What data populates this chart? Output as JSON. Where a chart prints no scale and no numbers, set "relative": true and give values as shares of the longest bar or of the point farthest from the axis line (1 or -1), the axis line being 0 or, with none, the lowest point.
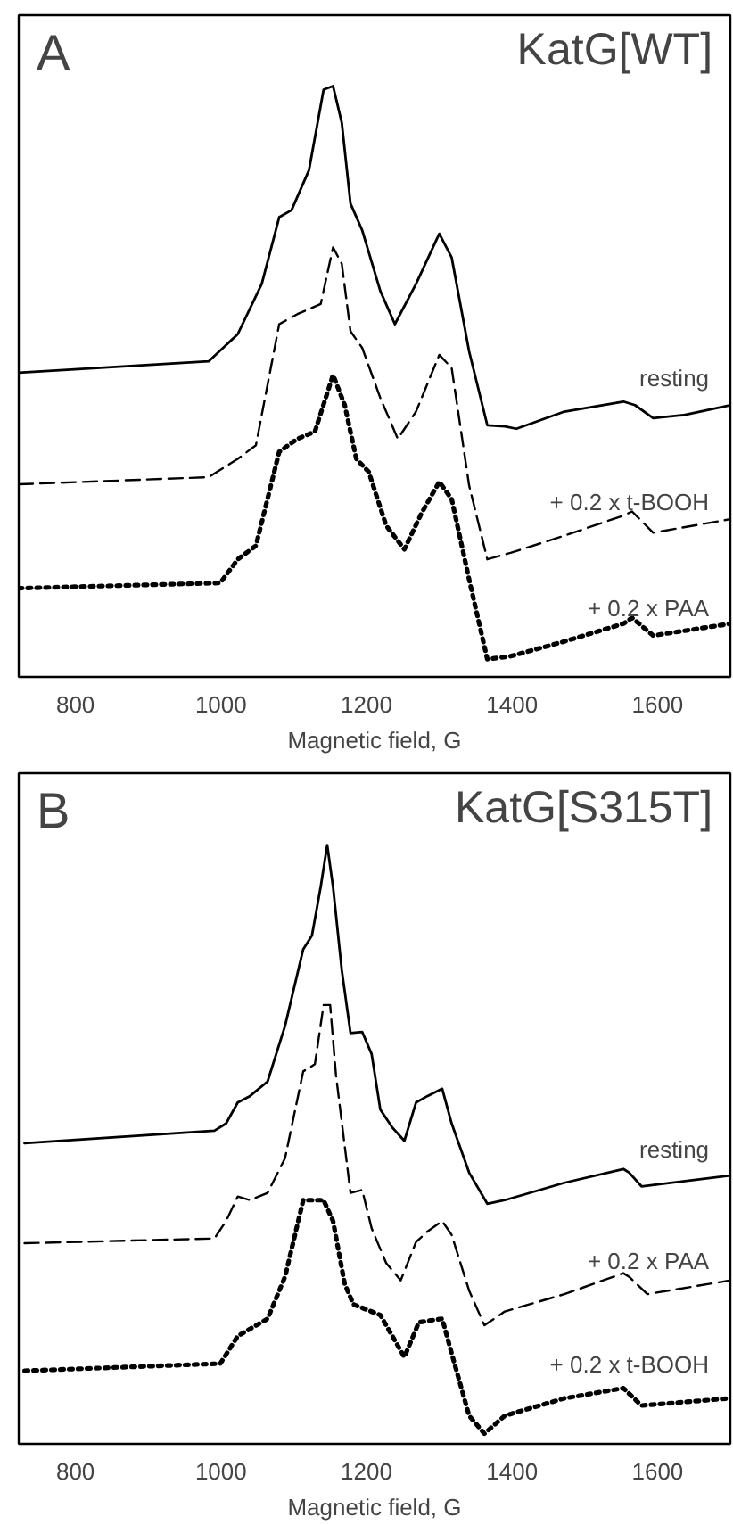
{
  "chart_data": [
    {
      "type": "line",
      "title": "KatG[WT]",
      "xlabel": "Magnetic field, G",
      "annotations": [
        "A"
      ],
      "relative": true,
      "xlim": [
        722,
        1700
      ],
      "xticks": [
        800,
        1000,
        1200,
        1400,
        1600
      ],
      "tick_labels": "x",
      "series": [
        {
          "name": "resting",
          "color": "#000000",
          "line_style": "solid",
          "x": [
            722,
            983,
            1023,
            1056,
            1080,
            1097,
            1121,
            1141,
            1154,
            1166,
            1178,
            1194,
            1219,
            1239,
            1268,
            1300,
            1317,
            1341,
            1366,
            1390,
            1406,
            1472,
            1553,
            1569,
            1594,
            1635,
            1700
          ],
          "values": [
            0.515,
            0.534,
            0.58,
            0.665,
            0.778,
            0.79,
            0.858,
            0.994,
            1.0,
            0.938,
            0.801,
            0.756,
            0.653,
            0.597,
            0.665,
            0.75,
            0.71,
            0.551,
            0.426,
            0.424,
            0.42,
            0.449,
            0.466,
            0.46,
            0.438,
            0.443,
            0.46
          ]
        },
        {
          "name": "+ 0.2 x t-BOOH",
          "color": "#000000",
          "line_style": "dashed",
          "x": [
            722,
            983,
            1023,
            1048,
            1080,
            1105,
            1137,
            1154,
            1166,
            1178,
            1194,
            1219,
            1243,
            1268,
            1300,
            1317,
            1341,
            1366,
            1398,
            1472,
            1553,
            1565,
            1594,
            1700
          ],
          "values": [
            0.326,
            0.338,
            0.369,
            0.392,
            0.597,
            0.614,
            0.631,
            0.727,
            0.699,
            0.585,
            0.557,
            0.472,
            0.403,
            0.449,
            0.545,
            0.523,
            0.324,
            0.199,
            0.21,
            0.239,
            0.273,
            0.28,
            0.244,
            0.267
          ]
        },
        {
          "name": "+ 0.2 x PAA",
          "color": "#000000",
          "line_style": "dotted",
          "x": [
            722,
            999,
            1023,
            1048,
            1080,
            1105,
            1129,
            1154,
            1170,
            1186,
            1203,
            1227,
            1252,
            1276,
            1300,
            1317,
            1341,
            1366,
            1398,
            1472,
            1553,
            1565,
            1594,
            1700
          ],
          "values": [
            0.15,
            0.159,
            0.199,
            0.222,
            0.381,
            0.403,
            0.415,
            0.511,
            0.46,
            0.369,
            0.347,
            0.256,
            0.216,
            0.278,
            0.33,
            0.301,
            0.165,
            0.03,
            0.035,
            0.06,
            0.09,
            0.1,
            0.07,
            0.09
          ]
        }
      ]
    },
    {
      "type": "line",
      "title": "KatG[S315T]",
      "xlabel": "Magnetic field, G",
      "annotations": [
        "B"
      ],
      "relative": true,
      "xlim": [
        722,
        1700
      ],
      "xticks": [
        800,
        1000,
        1200,
        1400,
        1600
      ],
      "tick_labels": "x",
      "series": [
        {
          "name": "resting",
          "color": "#000000",
          "line_style": "solid",
          "x": [
            730,
            991,
            1007,
            1023,
            1040,
            1064,
            1088,
            1113,
            1125,
            1137,
            1146,
            1154,
            1166,
            1178,
            1194,
            1207,
            1219,
            1235,
            1252,
            1268,
            1284,
            1304,
            1317,
            1341,
            1366,
            1390,
            1472,
            1553,
            1561,
            1578,
            1700
          ],
          "values": [
            0.502,
            0.523,
            0.535,
            0.57,
            0.581,
            0.605,
            0.698,
            0.826,
            0.849,
            0.93,
            1.0,
            0.93,
            0.791,
            0.686,
            0.688,
            0.651,
            0.558,
            0.529,
            0.506,
            0.57,
            0.581,
            0.593,
            0.535,
            0.453,
            0.401,
            0.407,
            0.436,
            0.459,
            0.453,
            0.43,
            0.448
          ]
        },
        {
          "name": "+ 0.2 x PAA",
          "color": "#000000",
          "line_style": "dashed",
          "x": [
            730,
            991,
            1007,
            1023,
            1040,
            1064,
            1088,
            1113,
            1129,
            1141,
            1150,
            1158,
            1178,
            1194,
            1207,
            1227,
            1247,
            1268,
            1284,
            1304,
            1317,
            1341,
            1362,
            1390,
            1472,
            1553,
            1561,
            1586,
            1700
          ],
          "values": [
            0.335,
            0.343,
            0.372,
            0.413,
            0.407,
            0.419,
            0.477,
            0.622,
            0.634,
            0.733,
            0.733,
            0.616,
            0.419,
            0.424,
            0.36,
            0.302,
            0.273,
            0.337,
            0.355,
            0.372,
            0.349,
            0.256,
            0.198,
            0.221,
            0.25,
            0.285,
            0.279,
            0.25,
            0.273
          ]
        },
        {
          "name": "+ 0.2 x t-BOOH",
          "color": "#000000",
          "line_style": "dotted",
          "x": [
            730,
            999,
            1023,
            1064,
            1088,
            1113,
            1141,
            1154,
            1170,
            1182,
            1219,
            1252,
            1272,
            1304,
            1317,
            1341,
            1362,
            1390,
            1472,
            1553,
            1578,
            1700
          ],
          "values": [
            0.122,
            0.134,
            0.18,
            0.209,
            0.279,
            0.407,
            0.407,
            0.372,
            0.267,
            0.233,
            0.215,
            0.145,
            0.203,
            0.209,
            0.151,
            0.047,
            0.017,
            0.047,
            0.076,
            0.093,
            0.064,
            0.076
          ]
        }
      ]
    }
  ]
}
